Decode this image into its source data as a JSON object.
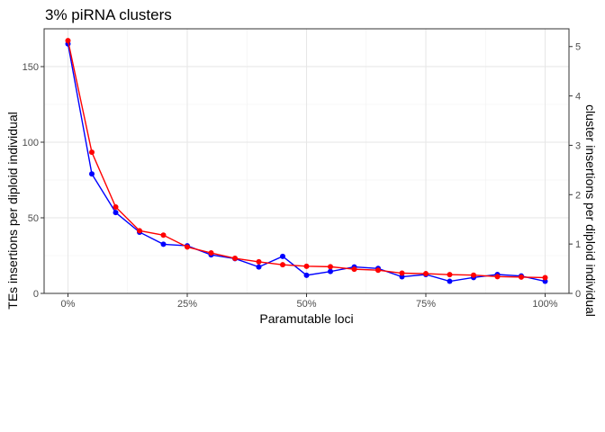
{
  "chart_data": {
    "type": "line",
    "title": "3% piRNA clusters",
    "xlabel": "Paramutable loci",
    "ylabel": "TEs insertions per diploid individual",
    "y2label": "cluster insertions per diploid individual",
    "x": [
      0,
      5,
      10,
      15,
      20,
      25,
      30,
      35,
      40,
      45,
      50,
      55,
      60,
      65,
      70,
      75,
      80,
      85,
      90,
      95,
      100
    ],
    "xlim": [
      -5,
      105
    ],
    "ylim": [
      0,
      175
    ],
    "y2lim": [
      0,
      5.36
    ],
    "x_ticks": [
      0,
      25,
      50,
      75,
      100
    ],
    "x_tick_labels": [
      "0%",
      "25%",
      "50%",
      "75%",
      "100%"
    ],
    "y_ticks": [
      0,
      50,
      100,
      150
    ],
    "y_tick_labels": [
      "0",
      "50",
      "100",
      "150"
    ],
    "y2_ticks": [
      0,
      1,
      2,
      3,
      4,
      5
    ],
    "y2_tick_labels": [
      "0",
      "1",
      "2",
      "3",
      "4",
      "5"
    ],
    "grid": true,
    "series": [
      {
        "axis": "left",
        "color": "#0000ff",
        "values": [
          165,
          79,
          53.5,
          40.5,
          32.5,
          31.5,
          25.5,
          23,
          17.5,
          24.5,
          12,
          14.5,
          17.5,
          16.5,
          11,
          12.5,
          8,
          10.5,
          12.5,
          11.5,
          8
        ]
      },
      {
        "axis": "right",
        "color": "#ff0000",
        "values": [
          5.12,
          2.86,
          1.75,
          1.27,
          1.18,
          0.94,
          0.82,
          0.71,
          0.64,
          0.58,
          0.55,
          0.54,
          0.49,
          0.47,
          0.41,
          0.4,
          0.38,
          0.37,
          0.34,
          0.33,
          0.32
        ]
      }
    ]
  }
}
